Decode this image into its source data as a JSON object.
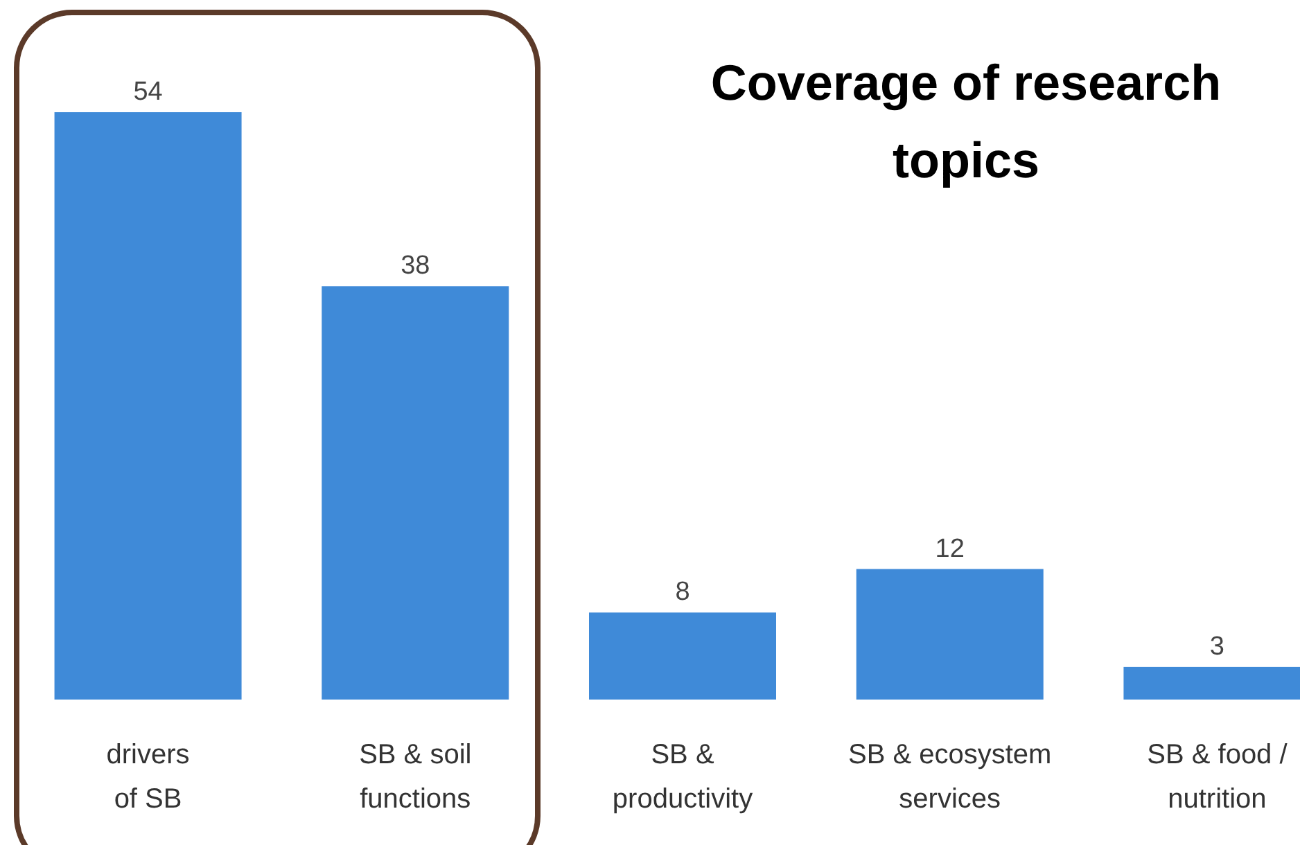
{
  "chart_data": {
    "type": "bar",
    "title": "Coverage of research topics",
    "categories": [
      "drivers\nof SB",
      "SB & soil\nfunctions",
      "SB &\nproductivity",
      "SB & ecosystem\nservices",
      "SB & food /\nnutrition"
    ],
    "values": [
      54,
      38,
      8,
      12,
      3
    ],
    "color": "#3f8ad8",
    "data_labels": true
  }
}
